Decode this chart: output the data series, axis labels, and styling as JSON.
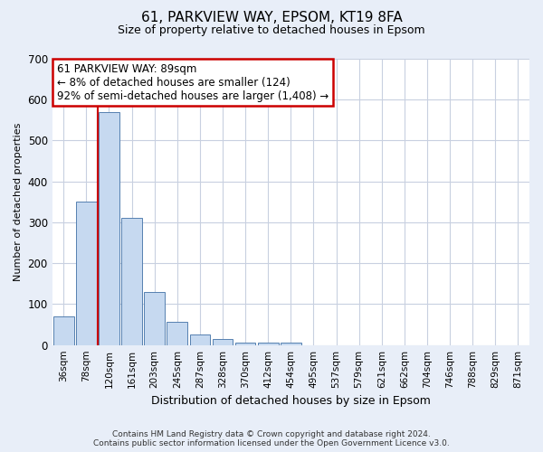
{
  "title": "61, PARKVIEW WAY, EPSOM, KT19 8FA",
  "subtitle": "Size of property relative to detached houses in Epsom",
  "xlabel": "Distribution of detached houses by size in Epsom",
  "ylabel": "Number of detached properties",
  "bin_labels": [
    "36sqm",
    "78sqm",
    "120sqm",
    "161sqm",
    "203sqm",
    "245sqm",
    "287sqm",
    "328sqm",
    "370sqm",
    "412sqm",
    "454sqm",
    "495sqm",
    "537sqm",
    "579sqm",
    "621sqm",
    "662sqm",
    "704sqm",
    "746sqm",
    "788sqm",
    "829sqm",
    "871sqm"
  ],
  "bar_heights": [
    70,
    350,
    570,
    312,
    130,
    57,
    25,
    14,
    7,
    6,
    7,
    0,
    0,
    0,
    0,
    0,
    0,
    0,
    0,
    0,
    0
  ],
  "bar_color": "#c6d9f0",
  "bar_edge_color": "#5580b0",
  "vline_color": "#cc0000",
  "vline_x": 1.5,
  "ylim": [
    0,
    700
  ],
  "yticks": [
    0,
    100,
    200,
    300,
    400,
    500,
    600,
    700
  ],
  "annotation_text": "61 PARKVIEW WAY: 89sqm\n← 8% of detached houses are smaller (124)\n92% of semi-detached houses are larger (1,408) →",
  "annotation_box_color": "white",
  "annotation_box_edge_color": "#cc0000",
  "footer_line1": "Contains HM Land Registry data © Crown copyright and database right 2024.",
  "footer_line2": "Contains public sector information licensed under the Open Government Licence v3.0.",
  "background_color": "#e8eef8",
  "plot_background_color": "white",
  "grid_color": "#c8d0e0",
  "title_fontsize": 11,
  "subtitle_fontsize": 9,
  "ylabel_fontsize": 8,
  "xlabel_fontsize": 9
}
